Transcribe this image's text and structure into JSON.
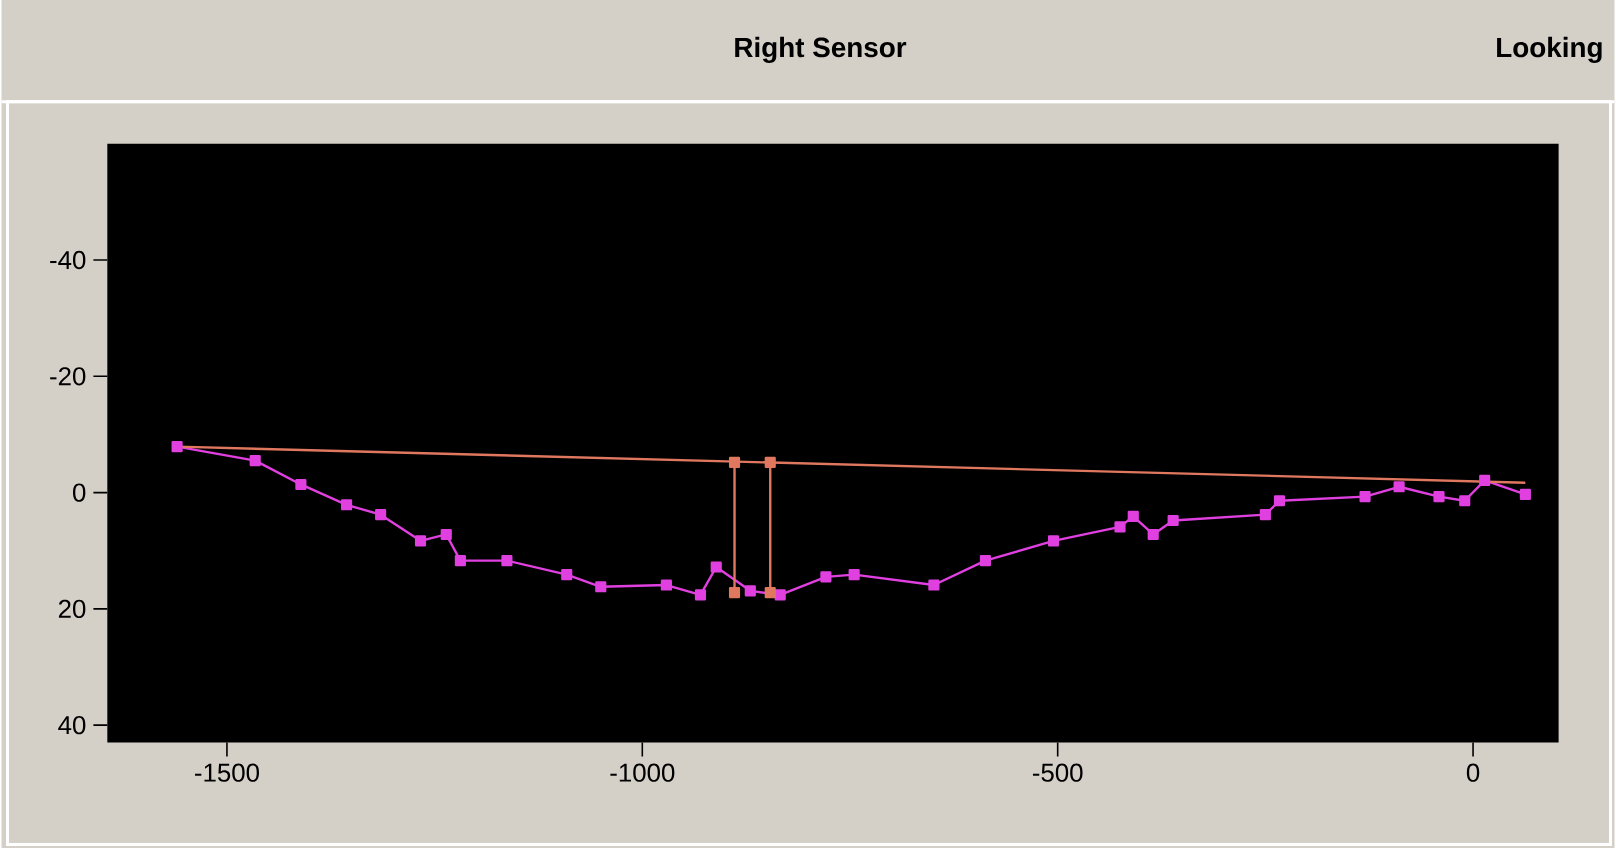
{
  "chart_data": {
    "type": "line",
    "title": "Right Sensor",
    "annotations": [
      "Looking"
    ],
    "xlim": [
      -1644,
      103
    ],
    "ylim": [
      43,
      -60
    ],
    "xticks": [
      -1500,
      -1000,
      -500,
      0
    ],
    "yticks": [
      -40,
      -20,
      0,
      20,
      40
    ],
    "marker": "square",
    "series": [
      {
        "color": "#e040e0",
        "x": [
          -1560,
          -1466,
          -1411,
          -1356,
          -1315,
          -1267,
          -1236,
          -1219,
          -1163,
          -1091,
          -1050,
          -971,
          -930,
          -911,
          -870,
          -834,
          -779,
          -745,
          -649,
          -587,
          -505,
          -425,
          -409,
          -385,
          -361,
          -250,
          -233,
          -130,
          -89,
          -41,
          -10,
          14,
          63
        ],
        "values": [
          -7.9,
          -5.5,
          -1.4,
          2.1,
          3.8,
          8.3,
          7.2,
          11.7,
          11.7,
          14.1,
          16.2,
          15.9,
          17.6,
          12.8,
          16.9,
          17.6,
          14.5,
          14.1,
          15.9,
          11.7,
          8.3,
          5.9,
          4.1,
          7.2,
          4.8,
          3.8,
          1.4,
          0.7,
          -1.0,
          0.7,
          1.4,
          -2.1,
          0.3
        ]
      },
      {
        "color": "#e07860",
        "marker": "none",
        "x": [
          -1560,
          63
        ],
        "values": [
          -7.9,
          -1.7
        ]
      },
      {
        "color": "#e07860",
        "x": [
          -889,
          -889
        ],
        "values": [
          -5.2,
          17.2
        ]
      },
      {
        "color": "#e07860",
        "x": [
          -846,
          -846
        ],
        "values": [
          -5.2,
          17.2
        ]
      }
    ]
  }
}
